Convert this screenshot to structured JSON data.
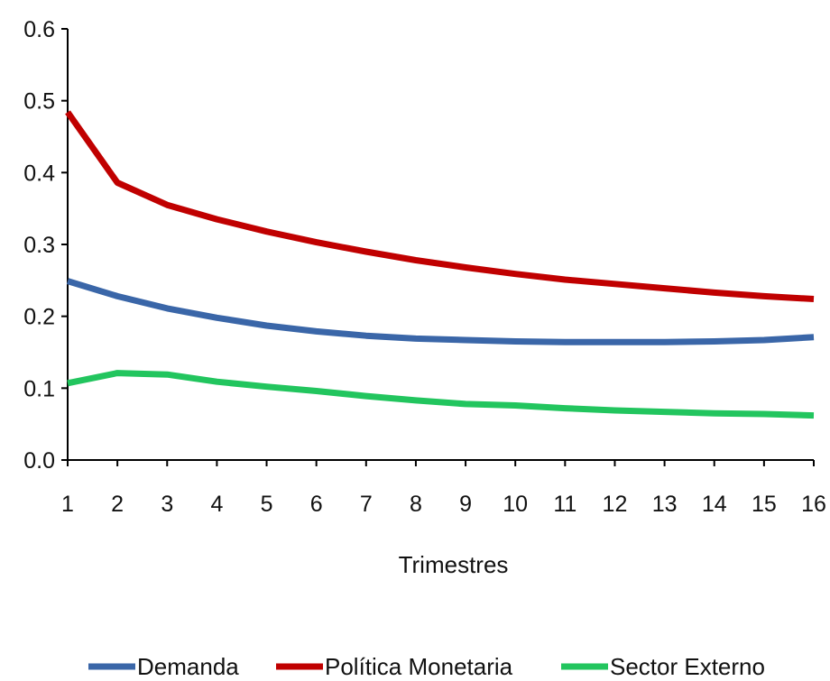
{
  "chart_data": {
    "type": "line",
    "title": "",
    "xlabel": "Trimestres",
    "ylabel": "",
    "x": [
      1,
      2,
      3,
      4,
      5,
      6,
      7,
      8,
      9,
      10,
      11,
      12,
      13,
      14,
      15,
      16
    ],
    "xticks": [
      "1",
      "2",
      "3",
      "4",
      "5",
      "6",
      "7",
      "8",
      "9",
      "10",
      "11",
      "12",
      "13",
      "14",
      "15",
      "16"
    ],
    "ylim": [
      0,
      0.6
    ],
    "yticks": [
      "0.0",
      "0.1",
      "0.2",
      "0.3",
      "0.4",
      "0.5",
      "0.6"
    ],
    "grid": false,
    "legend_position": "bottom",
    "series": [
      {
        "name": "Demanda",
        "color": "#3A66A8",
        "values": [
          0.249,
          0.228,
          0.211,
          0.198,
          0.187,
          0.179,
          0.173,
          0.169,
          0.167,
          0.165,
          0.164,
          0.164,
          0.164,
          0.165,
          0.167,
          0.171
        ]
      },
      {
        "name": "Política Monetaria",
        "color": "#C00000",
        "values": [
          0.484,
          0.386,
          0.355,
          0.335,
          0.318,
          0.303,
          0.29,
          0.278,
          0.268,
          0.259,
          0.251,
          0.245,
          0.239,
          0.233,
          0.228,
          0.224
        ]
      },
      {
        "name": "Sector Externo",
        "color": "#22C55E",
        "values": [
          0.107,
          0.121,
          0.119,
          0.109,
          0.102,
          0.096,
          0.089,
          0.083,
          0.078,
          0.076,
          0.072,
          0.069,
          0.067,
          0.065,
          0.064,
          0.062
        ]
      }
    ]
  }
}
